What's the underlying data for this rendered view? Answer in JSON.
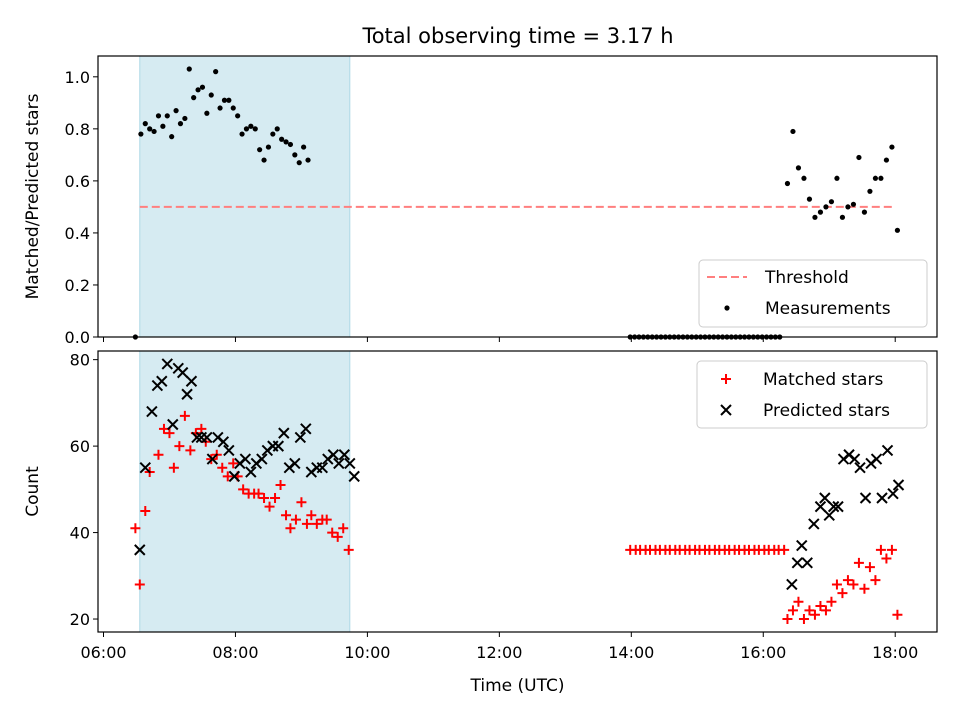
{
  "figure": {
    "title": "Total observing time = 3.17 h"
  },
  "chart_data": [
    {
      "type": "scatter",
      "ylabel": "Matched/Predicted stars",
      "xlabel": "",
      "xlim": [
        "05:55",
        "18:38"
      ],
      "ylim": [
        0,
        1.08
      ],
      "yticks": [
        "0.0",
        "0.2",
        "0.4",
        "0.6",
        "0.8",
        "1.0"
      ],
      "shaded_span": [
        "06:33",
        "09:44"
      ],
      "legend": [
        "Threshold",
        "Measurements"
      ],
      "legend_position": "lower-right",
      "threshold": {
        "name": "Threshold",
        "from": "06:33",
        "to": "18:00",
        "y": 0.5,
        "color": "#ff7f7f"
      },
      "series": [
        {
          "name": "Measurements",
          "color": "#000000",
          "points": [
            [
              "06:29",
              0.0
            ],
            [
              "06:34",
              0.78
            ],
            [
              "06:38",
              0.82
            ],
            [
              "06:42",
              0.8
            ],
            [
              "06:46",
              0.79
            ],
            [
              "06:50",
              0.85
            ],
            [
              "06:54",
              0.81
            ],
            [
              "06:58",
              0.85
            ],
            [
              "07:02",
              0.77
            ],
            [
              "07:06",
              0.87
            ],
            [
              "07:10",
              0.82
            ],
            [
              "07:14",
              0.84
            ],
            [
              "07:18",
              1.03
            ],
            [
              "07:22",
              0.92
            ],
            [
              "07:26",
              0.95
            ],
            [
              "07:30",
              0.96
            ],
            [
              "07:34",
              0.86
            ],
            [
              "07:38",
              0.93
            ],
            [
              "07:42",
              1.02
            ],
            [
              "07:46",
              0.88
            ],
            [
              "07:50",
              0.91
            ],
            [
              "07:54",
              0.91
            ],
            [
              "07:58",
              0.88
            ],
            [
              "08:02",
              0.85
            ],
            [
              "08:06",
              0.78
            ],
            [
              "08:10",
              0.8
            ],
            [
              "08:14",
              0.81
            ],
            [
              "08:18",
              0.8
            ],
            [
              "08:22",
              0.72
            ],
            [
              "08:26",
              0.68
            ],
            [
              "08:30",
              0.73
            ],
            [
              "08:34",
              0.78
            ],
            [
              "08:38",
              0.8
            ],
            [
              "08:42",
              0.76
            ],
            [
              "08:46",
              0.75
            ],
            [
              "08:50",
              0.74
            ],
            [
              "08:54",
              0.7
            ],
            [
              "08:58",
              0.67
            ],
            [
              "09:02",
              0.73
            ],
            [
              "09:06",
              0.68
            ],
            [
              "13:59",
              0.0
            ],
            [
              "14:03",
              0.0
            ],
            [
              "14:07",
              0.0
            ],
            [
              "14:11",
              0.0
            ],
            [
              "14:15",
              0.0
            ],
            [
              "14:19",
              0.0
            ],
            [
              "14:23",
              0.0
            ],
            [
              "14:27",
              0.0
            ],
            [
              "14:31",
              0.0
            ],
            [
              "14:35",
              0.0
            ],
            [
              "14:39",
              0.0
            ],
            [
              "14:43",
              0.0
            ],
            [
              "14:47",
              0.0
            ],
            [
              "14:51",
              0.0
            ],
            [
              "14:55",
              0.0
            ],
            [
              "14:59",
              0.0
            ],
            [
              "15:03",
              0.0
            ],
            [
              "15:07",
              0.0
            ],
            [
              "15:11",
              0.0
            ],
            [
              "15:15",
              0.0
            ],
            [
              "15:19",
              0.0
            ],
            [
              "15:23",
              0.0
            ],
            [
              "15:27",
              0.0
            ],
            [
              "15:31",
              0.0
            ],
            [
              "15:35",
              0.0
            ],
            [
              "15:39",
              0.0
            ],
            [
              "15:43",
              0.0
            ],
            [
              "15:47",
              0.0
            ],
            [
              "15:51",
              0.0
            ],
            [
              "15:55",
              0.0
            ],
            [
              "15:59",
              0.0
            ],
            [
              "16:03",
              0.0
            ],
            [
              "16:07",
              0.0
            ],
            [
              "16:11",
              0.0
            ],
            [
              "16:15",
              0.0
            ],
            [
              "16:22",
              0.59
            ],
            [
              "16:27",
              0.79
            ],
            [
              "16:32",
              0.65
            ],
            [
              "16:37",
              0.61
            ],
            [
              "16:42",
              0.53
            ],
            [
              "16:47",
              0.46
            ],
            [
              "16:52",
              0.48
            ],
            [
              "16:57",
              0.5
            ],
            [
              "17:02",
              0.52
            ],
            [
              "17:07",
              0.61
            ],
            [
              "17:12",
              0.46
            ],
            [
              "17:17",
              0.5
            ],
            [
              "17:22",
              0.51
            ],
            [
              "17:27",
              0.69
            ],
            [
              "17:32",
              0.48
            ],
            [
              "17:37",
              0.56
            ],
            [
              "17:42",
              0.61
            ],
            [
              "17:47",
              0.61
            ],
            [
              "17:52",
              0.68
            ],
            [
              "17:57",
              0.73
            ],
            [
              "18:02",
              0.41
            ]
          ]
        }
      ]
    },
    {
      "type": "scatter",
      "ylabel": "Count",
      "xlabel": "Time (UTC)",
      "xlim": [
        "05:55",
        "18:38"
      ],
      "ylim": [
        17,
        82
      ],
      "yticks": [
        "20",
        "40",
        "60",
        "80"
      ],
      "xticks": [
        "06:00",
        "08:00",
        "10:00",
        "12:00",
        "14:00",
        "16:00",
        "18:00"
      ],
      "shaded_span": [
        "06:33",
        "09:44"
      ],
      "legend": [
        "Matched stars",
        "Predicted stars"
      ],
      "legend_position": "upper-right",
      "series": [
        {
          "name": "Matched stars",
          "color": "#ff0000",
          "marker": "+",
          "points": [
            [
              "06:29",
              41
            ],
            [
              "06:33",
              28
            ],
            [
              "06:38",
              45
            ],
            [
              "06:42",
              54
            ],
            [
              "06:50",
              58
            ],
            [
              "06:55",
              64
            ],
            [
              "07:00",
              63
            ],
            [
              "07:04",
              55
            ],
            [
              "07:09",
              60
            ],
            [
              "07:14",
              67
            ],
            [
              "07:19",
              59
            ],
            [
              "07:24",
              63
            ],
            [
              "07:29",
              64
            ],
            [
              "07:33",
              61
            ],
            [
              "07:38",
              57
            ],
            [
              "07:43",
              58
            ],
            [
              "07:48",
              55
            ],
            [
              "07:53",
              53
            ],
            [
              "07:58",
              56
            ],
            [
              "08:02",
              53
            ],
            [
              "08:07",
              50
            ],
            [
              "08:12",
              49
            ],
            [
              "08:17",
              49
            ],
            [
              "08:21",
              49
            ],
            [
              "08:26",
              48
            ],
            [
              "08:31",
              46
            ],
            [
              "08:36",
              48
            ],
            [
              "08:41",
              51
            ],
            [
              "08:46",
              44
            ],
            [
              "08:50",
              41
            ],
            [
              "08:55",
              43
            ],
            [
              "09:00",
              47
            ],
            [
              "09:05",
              42
            ],
            [
              "09:09",
              44
            ],
            [
              "09:14",
              42
            ],
            [
              "09:19",
              43
            ],
            [
              "09:23",
              43
            ],
            [
              "09:28",
              40
            ],
            [
              "09:33",
              39
            ],
            [
              "09:38",
              41
            ],
            [
              "09:43",
              36
            ],
            [
              "13:59",
              36
            ],
            [
              "14:04",
              36
            ],
            [
              "14:08",
              36
            ],
            [
              "14:13",
              36
            ],
            [
              "14:17",
              36
            ],
            [
              "14:22",
              36
            ],
            [
              "14:26",
              36
            ],
            [
              "14:31",
              36
            ],
            [
              "14:35",
              36
            ],
            [
              "14:40",
              36
            ],
            [
              "14:44",
              36
            ],
            [
              "14:49",
              36
            ],
            [
              "14:53",
              36
            ],
            [
              "14:58",
              36
            ],
            [
              "15:02",
              36
            ],
            [
              "15:07",
              36
            ],
            [
              "15:11",
              36
            ],
            [
              "15:16",
              36
            ],
            [
              "15:20",
              36
            ],
            [
              "15:25",
              36
            ],
            [
              "15:29",
              36
            ],
            [
              "15:34",
              36
            ],
            [
              "15:38",
              36
            ],
            [
              "15:43",
              36
            ],
            [
              "15:47",
              36
            ],
            [
              "15:52",
              36
            ],
            [
              "15:56",
              36
            ],
            [
              "16:01",
              36
            ],
            [
              "16:05",
              36
            ],
            [
              "16:10",
              36
            ],
            [
              "16:14",
              36
            ],
            [
              "16:19",
              36
            ],
            [
              "16:22",
              20
            ],
            [
              "16:27",
              22
            ],
            [
              "16:32",
              24
            ],
            [
              "16:37",
              20
            ],
            [
              "16:42",
              22
            ],
            [
              "16:47",
              21
            ],
            [
              "16:52",
              23
            ],
            [
              "16:57",
              22
            ],
            [
              "17:02",
              24
            ],
            [
              "17:07",
              28
            ],
            [
              "17:12",
              26
            ],
            [
              "17:17",
              29
            ],
            [
              "17:22",
              28
            ],
            [
              "17:27",
              33
            ],
            [
              "17:32",
              27
            ],
            [
              "17:37",
              32
            ],
            [
              "17:42",
              29
            ],
            [
              "17:47",
              36
            ],
            [
              "17:52",
              34
            ],
            [
              "17:57",
              36
            ],
            [
              "18:02",
              21
            ]
          ]
        },
        {
          "name": "Predicted stars",
          "color": "#000000",
          "marker": "x",
          "points": [
            [
              "06:33",
              36
            ],
            [
              "06:38",
              55
            ],
            [
              "06:44",
              68
            ],
            [
              "06:49",
              74
            ],
            [
              "06:53",
              75
            ],
            [
              "06:58",
              79
            ],
            [
              "07:03",
              65
            ],
            [
              "07:08",
              78
            ],
            [
              "07:12",
              77
            ],
            [
              "07:16",
              72
            ],
            [
              "07:20",
              75
            ],
            [
              "07:25",
              62
            ],
            [
              "07:29",
              62
            ],
            [
              "07:34",
              62
            ],
            [
              "07:39",
              57
            ],
            [
              "07:44",
              62
            ],
            [
              "07:49",
              61
            ],
            [
              "07:54",
              59
            ],
            [
              "07:59",
              53
            ],
            [
              "08:04",
              56
            ],
            [
              "08:09",
              57
            ],
            [
              "08:14",
              54
            ],
            [
              "08:19",
              56
            ],
            [
              "08:24",
              57
            ],
            [
              "08:29",
              59
            ],
            [
              "08:34",
              60
            ],
            [
              "08:39",
              60
            ],
            [
              "08:44",
              63
            ],
            [
              "08:49",
              55
            ],
            [
              "08:54",
              56
            ],
            [
              "08:59",
              62
            ],
            [
              "09:04",
              64
            ],
            [
              "09:09",
              54
            ],
            [
              "09:14",
              55
            ],
            [
              "09:19",
              55
            ],
            [
              "09:24",
              57
            ],
            [
              "09:29",
              58
            ],
            [
              "09:34",
              56
            ],
            [
              "09:39",
              58
            ],
            [
              "09:44",
              56
            ],
            [
              "09:48",
              53
            ],
            [
              "16:26",
              28
            ],
            [
              "16:31",
              33
            ],
            [
              "16:35",
              37
            ],
            [
              "16:40",
              33
            ],
            [
              "16:46",
              42
            ],
            [
              "16:52",
              46
            ],
            [
              "16:56",
              48
            ],
            [
              "17:00",
              44
            ],
            [
              "17:04",
              46
            ],
            [
              "17:08",
              46
            ],
            [
              "17:13",
              57
            ],
            [
              "17:18",
              58
            ],
            [
              "17:23",
              57
            ],
            [
              "17:28",
              55
            ],
            [
              "17:33",
              48
            ],
            [
              "17:38",
              56
            ],
            [
              "17:43",
              57
            ],
            [
              "17:48",
              48
            ],
            [
              "17:53",
              59
            ],
            [
              "17:58",
              49
            ],
            [
              "18:03",
              51
            ]
          ]
        }
      ]
    }
  ]
}
